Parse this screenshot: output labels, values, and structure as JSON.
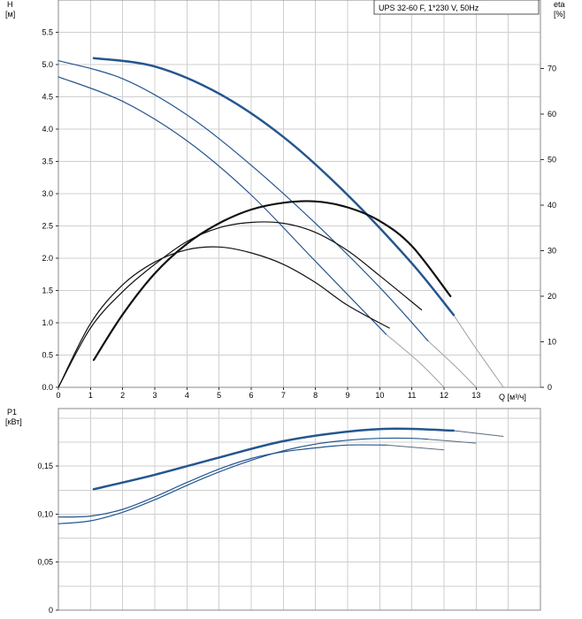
{
  "chart_data": [
    {
      "type": "line",
      "title": "UPS 32-60 F, 1*230 V, 50Hz",
      "ylabel": "H",
      "yunit": "[м]",
      "y2label": "eta",
      "y2unit": "[%]",
      "xlabel": "Q [м³/ч]",
      "xlim": [
        0,
        15
      ],
      "ylim": [
        0,
        6
      ],
      "y2lim": [
        0,
        85
      ],
      "grid": true,
      "x_ticks": [
        0,
        1,
        2,
        3,
        4,
        5,
        6,
        7,
        8,
        9,
        10,
        11,
        12,
        13
      ],
      "y_ticks": [
        "0.0",
        "0.5",
        "1.0",
        "1.5",
        "2.0",
        "2.5",
        "3.0",
        "3.5",
        "4.0",
        "4.5",
        "5.0",
        "5.5"
      ],
      "y2_ticks": [
        0,
        10,
        20,
        30,
        40,
        50,
        60,
        70
      ],
      "colors": {
        "head": "#24568f",
        "eta": "#111111",
        "ext": "#9aa3ad"
      },
      "head_series": [
        {
          "x": [
            1.1,
            3,
            5,
            7,
            9,
            11,
            12.3
          ],
          "y": [
            5.1,
            4.97,
            4.55,
            3.88,
            2.98,
            1.92,
            1.12
          ],
          "width": 2.5
        },
        {
          "x": [
            0,
            2,
            4,
            6,
            8,
            10,
            11.5
          ],
          "y": [
            5.06,
            4.78,
            4.22,
            3.44,
            2.54,
            1.55,
            0.72
          ],
          "width": 1.2
        },
        {
          "x": [
            0,
            2,
            4,
            6,
            8,
            10.2
          ],
          "y": [
            4.81,
            4.43,
            3.82,
            2.98,
            1.95,
            0.82
          ],
          "width": 1.2
        }
      ],
      "head_extensions": [
        {
          "x": [
            12.3,
            13,
            13.85
          ],
          "y": [
            1.12,
            0.6,
            0
          ]
        },
        {
          "x": [
            11.5,
            12.3,
            13
          ],
          "y": [
            0.72,
            0.35,
            0
          ]
        },
        {
          "x": [
            10.2,
            11.2,
            12
          ],
          "y": [
            0.82,
            0.4,
            0
          ]
        }
      ],
      "eta_series": [
        {
          "x": [
            1.1,
            2,
            3,
            4,
            5,
            6,
            7,
            8,
            9,
            10,
            11,
            12.2
          ],
          "y": [
            6,
            16,
            25,
            31.5,
            36,
            39,
            40.5,
            40.8,
            39.5,
            36.5,
            31,
            20
          ],
          "width": 2.2
        },
        {
          "x": [
            0,
            1,
            2,
            3,
            4,
            5,
            6,
            7,
            8,
            9,
            10,
            11.3
          ],
          "y": [
            0,
            13,
            21,
            27,
            32,
            35,
            36.2,
            36,
            34,
            30,
            24.5,
            17
          ],
          "width": 1.2
        },
        {
          "x": [
            0,
            1,
            2,
            3,
            4,
            5,
            6,
            7,
            8,
            9,
            10.3
          ],
          "y": [
            0,
            14,
            22.5,
            27.5,
            30.2,
            30.8,
            29.5,
            27,
            23,
            18,
            13
          ],
          "width": 1.2
        }
      ]
    },
    {
      "type": "line",
      "ylabel": "P1",
      "yunit": "[кВт]",
      "xlim": [
        0,
        15
      ],
      "ylim": [
        0,
        0.21
      ],
      "grid": true,
      "y_ticks": [
        "0",
        "0,05",
        "0,10",
        "0,15"
      ],
      "y_tick_values": [
        0,
        0.05,
        0.1,
        0.15
      ],
      "colors": {
        "line": "#24568f",
        "ext": "#5a6b80"
      },
      "series": [
        {
          "x": [
            1.1,
            3,
            5,
            7,
            9,
            10.5,
            12.3
          ],
          "y": [
            0.126,
            0.141,
            0.159,
            0.176,
            0.186,
            0.189,
            0.187
          ],
          "width": 2.5
        },
        {
          "x": [
            0,
            1,
            2,
            3,
            4,
            5,
            6,
            7,
            8,
            9,
            10,
            11,
            11.5
          ],
          "y": [
            0.09,
            0.093,
            0.102,
            0.115,
            0.13,
            0.144,
            0.156,
            0.166,
            0.173,
            0.177,
            0.179,
            0.179,
            0.178
          ],
          "width": 1.2
        },
        {
          "x": [
            0,
            1,
            2,
            3,
            4,
            5,
            6,
            7,
            8,
            9,
            10.2
          ],
          "y": [
            0.097,
            0.098,
            0.105,
            0.118,
            0.133,
            0.147,
            0.158,
            0.165,
            0.169,
            0.172,
            0.172
          ],
          "width": 1.2
        }
      ],
      "extensions": [
        {
          "x": [
            12.3,
            13.85
          ],
          "y": [
            0.187,
            0.181
          ]
        },
        {
          "x": [
            11.5,
            13
          ],
          "y": [
            0.178,
            0.174
          ]
        },
        {
          "x": [
            10.2,
            12
          ],
          "y": [
            0.172,
            0.167
          ]
        }
      ]
    }
  ]
}
